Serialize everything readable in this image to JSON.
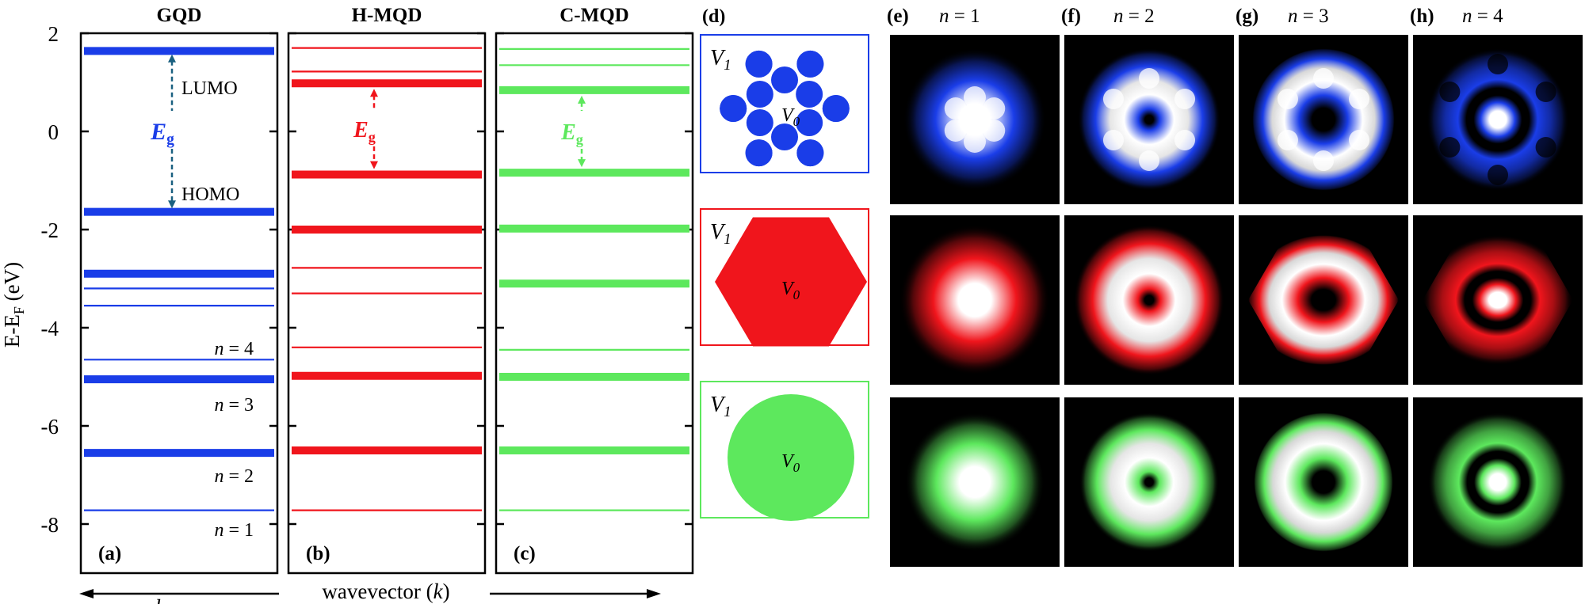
{
  "figure": {
    "y_axis": {
      "label_main": "E-E",
      "label_sub": "F",
      "label_unit": " (eV)",
      "ylim": [
        -9,
        2
      ],
      "ticks": [
        2,
        0,
        -2,
        -4,
        -6,
        -8
      ],
      "tick_labels": [
        "2",
        "0",
        "-2",
        "-4",
        "-6",
        "-8"
      ]
    },
    "x_axis": {
      "label": "wavevector (",
      "label_italic": "k",
      "label_close": ")",
      "partial_glyph": "k"
    },
    "gap_label": {
      "main": "E",
      "sub": "g"
    },
    "gqd_annotations": {
      "lumo": "LUMO",
      "homo": "HOMO",
      "levels": [
        {
          "n_prefix": "n",
          "n_text": " = 4",
          "energy": -4.4
        },
        {
          "n_prefix": "n",
          "n_text": " = 3",
          "energy": -5.55
        },
        {
          "n_prefix": "n",
          "n_text": " = 2",
          "energy": -7.0
        },
        {
          "n_prefix": "n",
          "n_text": " = 1",
          "energy": -8.1
        }
      ]
    },
    "energy_panels": [
      {
        "id": "gqd",
        "title": "GQD",
        "tag": "(a)",
        "color": "#1a3de8",
        "levels": [
          {
            "energy": 1.64,
            "thick": true
          },
          {
            "energy": -1.64,
            "thick": true
          },
          {
            "energy": -2.9,
            "thick": true
          },
          {
            "energy": -3.2,
            "thick": false
          },
          {
            "energy": -3.55,
            "thick": false
          },
          {
            "energy": -4.65,
            "thick": false
          },
          {
            "energy": -5.05,
            "thick": true
          },
          {
            "energy": -6.55,
            "thick": true
          },
          {
            "energy": -7.72,
            "thick": false
          }
        ]
      },
      {
        "id": "hmqd",
        "title": "H-MQD",
        "tag": "(b)",
        "color": "#f0151c",
        "levels": [
          {
            "energy": 1.7,
            "thick": false
          },
          {
            "energy": 1.22,
            "thick": false
          },
          {
            "energy": 0.98,
            "thick": true
          },
          {
            "energy": -0.88,
            "thick": true
          },
          {
            "energy": -2.0,
            "thick": true
          },
          {
            "energy": -2.78,
            "thick": false
          },
          {
            "energy": -3.3,
            "thick": false
          },
          {
            "energy": -4.4,
            "thick": false
          },
          {
            "energy": -4.98,
            "thick": true
          },
          {
            "energy": -6.5,
            "thick": true
          },
          {
            "energy": -7.72,
            "thick": false
          }
        ]
      },
      {
        "id": "cmqd",
        "title": "C-MQD",
        "tag": "(c)",
        "color": "#5de85d",
        "levels": [
          {
            "energy": 1.68,
            "thick": false
          },
          {
            "energy": 1.35,
            "thick": false
          },
          {
            "energy": 0.84,
            "thick": true
          },
          {
            "energy": -0.84,
            "thick": true
          },
          {
            "energy": -1.98,
            "thick": true
          },
          {
            "energy": -3.1,
            "thick": true
          },
          {
            "energy": -4.45,
            "thick": false
          },
          {
            "energy": -5.0,
            "thick": true
          },
          {
            "energy": -6.5,
            "thick": true
          },
          {
            "energy": -7.72,
            "thick": false
          }
        ]
      }
    ],
    "potential_panel": {
      "tag": "(d)",
      "v1_main": "V",
      "v1_sub": "1",
      "v0_main": "V",
      "v0_sub": "0",
      "rows": [
        {
          "id": "gqd",
          "color": "#1a3de8",
          "shape": "lattice"
        },
        {
          "id": "hmqd",
          "color": "#f0151c",
          "shape": "hexagon"
        },
        {
          "id": "cmqd",
          "color": "#5de85d",
          "shape": "circle"
        }
      ]
    },
    "wavefunction_panels": {
      "columns": [
        {
          "tag": "(e)",
          "n_prefix": "n",
          "n_text": " = 1"
        },
        {
          "tag": "(f)",
          "n_prefix": "n",
          "n_text": " = 2"
        },
        {
          "tag": "(g)",
          "n_prefix": "n",
          "n_text": " = 3"
        },
        {
          "tag": "(h)",
          "n_prefix": "n",
          "n_text": " = 4"
        }
      ],
      "rows": [
        {
          "id": "gqd",
          "color": "#1a3de8"
        },
        {
          "id": "hmqd",
          "color": "#f0151c"
        },
        {
          "id": "cmqd",
          "color": "#5de85d"
        }
      ]
    }
  }
}
